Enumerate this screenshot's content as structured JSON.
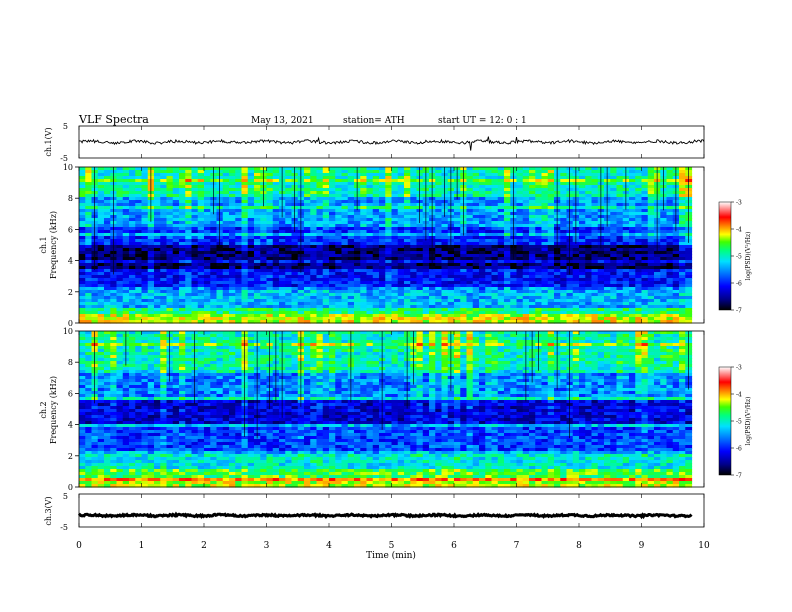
{
  "header": {
    "title": "VLF  Spectra",
    "date": "May 13, 2021",
    "station": "station= ATH",
    "start": "start  UT  =    12: 0   : 1"
  },
  "colors": {
    "spectrogram_scale": [
      "#000000",
      "#00008b",
      "#0000ff",
      "#0080ff",
      "#00e0ff",
      "#00ff80",
      "#40ff00",
      "#c0ff00",
      "#ffff00",
      "#ff8000",
      "#ff0000",
      "#ffffff"
    ],
    "trace": "#000000",
    "axis": "#000000"
  },
  "chart_data": [
    {
      "type": "line",
      "panel": "ch1-waveform",
      "ylabel": "ch.1(V)",
      "ylim": [
        -5,
        5
      ],
      "yticks": [
        "5",
        "-5"
      ],
      "xlim": [
        0,
        10
      ],
      "mean": 0,
      "note_values": "noisy trace around 0 V with occasional spikes"
    },
    {
      "type": "heatmap",
      "panel": "ch1-spectrogram",
      "ylabel": "Frequency  (kHz)",
      "ylabel_prefix": "ch.1",
      "ylim": [
        0,
        10
      ],
      "yticks": [
        "0",
        "2",
        "4",
        "6",
        "8",
        "10"
      ],
      "xlim": [
        0,
        9.8
      ],
      "colorbar": {
        "label": "log(PSD)(V²/Hz)",
        "ticks": [
          "-3",
          "-4",
          "-5",
          "-6",
          "-7"
        ],
        "range": [
          -7,
          -3
        ]
      },
      "bands_khz": [
        {
          "from": 0.0,
          "to": 0.4,
          "level": -4.2
        },
        {
          "from": 0.4,
          "to": 1.0,
          "level": -4.8
        },
        {
          "from": 1.0,
          "to": 2.2,
          "level": -5.4
        },
        {
          "from": 2.2,
          "to": 3.5,
          "level": -6.1
        },
        {
          "from": 3.5,
          "to": 5.0,
          "level": -6.7
        },
        {
          "from": 5.0,
          "to": 6.2,
          "level": -6.0
        },
        {
          "from": 6.2,
          "to": 8.0,
          "level": -5.5
        },
        {
          "from": 8.0,
          "to": 10.0,
          "level": -5.0
        }
      ]
    },
    {
      "type": "heatmap",
      "panel": "ch2-spectrogram",
      "ylabel": "Frequency  (kHz)",
      "ylabel_prefix": "ch.2",
      "ylim": [
        0,
        10
      ],
      "yticks": [
        "0",
        "2",
        "4",
        "6",
        "8",
        "10"
      ],
      "xlim": [
        0,
        9.8
      ],
      "colorbar": {
        "label": "log(PSD)(V²/Hz)",
        "ticks": [
          "-3",
          "-4",
          "-5",
          "-6",
          "-7"
        ],
        "range": [
          -7,
          -3
        ]
      },
      "bands_khz": [
        {
          "from": 0.0,
          "to": 0.6,
          "level": -4.3
        },
        {
          "from": 0.6,
          "to": 1.2,
          "level": -4.6
        },
        {
          "from": 1.2,
          "to": 2.2,
          "level": -5.1
        },
        {
          "from": 2.2,
          "to": 4.0,
          "level": -5.9
        },
        {
          "from": 4.0,
          "to": 5.5,
          "level": -6.3
        },
        {
          "from": 5.5,
          "to": 7.5,
          "level": -5.6
        },
        {
          "from": 7.5,
          "to": 10.0,
          "level": -5.0
        }
      ]
    },
    {
      "type": "line",
      "panel": "ch3-waveform",
      "ylabel": "ch.3(V)",
      "ylim": [
        -5,
        5
      ],
      "yticks": [
        "5",
        "-5"
      ],
      "xlim": [
        0,
        9.8
      ],
      "mean": -1.5,
      "note_values": "dense flat trace near -1.5 V"
    }
  ],
  "xaxis": {
    "label": "Time  (min)",
    "ticks": [
      "0",
      "1",
      "2",
      "3",
      "4",
      "5",
      "6",
      "7",
      "8",
      "9",
      "10"
    ],
    "range": [
      0,
      10
    ]
  }
}
